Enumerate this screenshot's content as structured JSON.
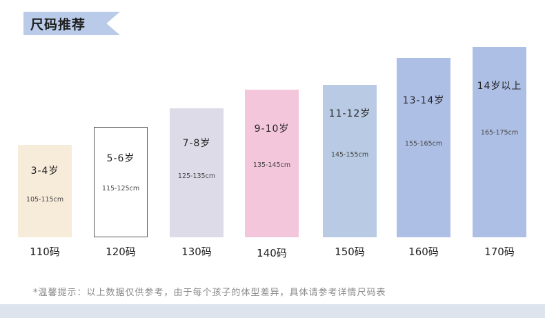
{
  "title": "尺码推荐",
  "colors": {
    "title_banner": "#b9cbe9",
    "bottom_strip": "#dde4ee"
  },
  "bars": [
    {
      "age": "3-4岁",
      "range": "105-115cm",
      "size": "110码",
      "fill": "#f7ebda",
      "border": "none"
    },
    {
      "age": "5-6岁",
      "range": "115-125cm",
      "size": "120码",
      "fill": "#ffffff",
      "border": "#555555"
    },
    {
      "age": "7-8岁",
      "range": "125-135cm",
      "size": "130码",
      "fill": "#dedbe9",
      "border": "none"
    },
    {
      "age": "9-10岁",
      "range": "135-145cm",
      "size": "140码",
      "fill": "#f4c6dc",
      "border": "none"
    },
    {
      "age": "11-12岁",
      "range": "145-155cm",
      "size": "150码",
      "fill": "#b9cbe4",
      "border": "none"
    },
    {
      "age": "13-14岁",
      "range": "155-165cm",
      "size": "160码",
      "fill": "#aebfe6",
      "border": "none"
    },
    {
      "age": "14岁以上",
      "range": "165-175cm",
      "size": "170码",
      "fill": "#aebfe6",
      "border": "none"
    }
  ],
  "note": "*温馨提示：以上数据仅供参考，由于每个孩子的体型差异，具体请参考详情尺码表"
}
